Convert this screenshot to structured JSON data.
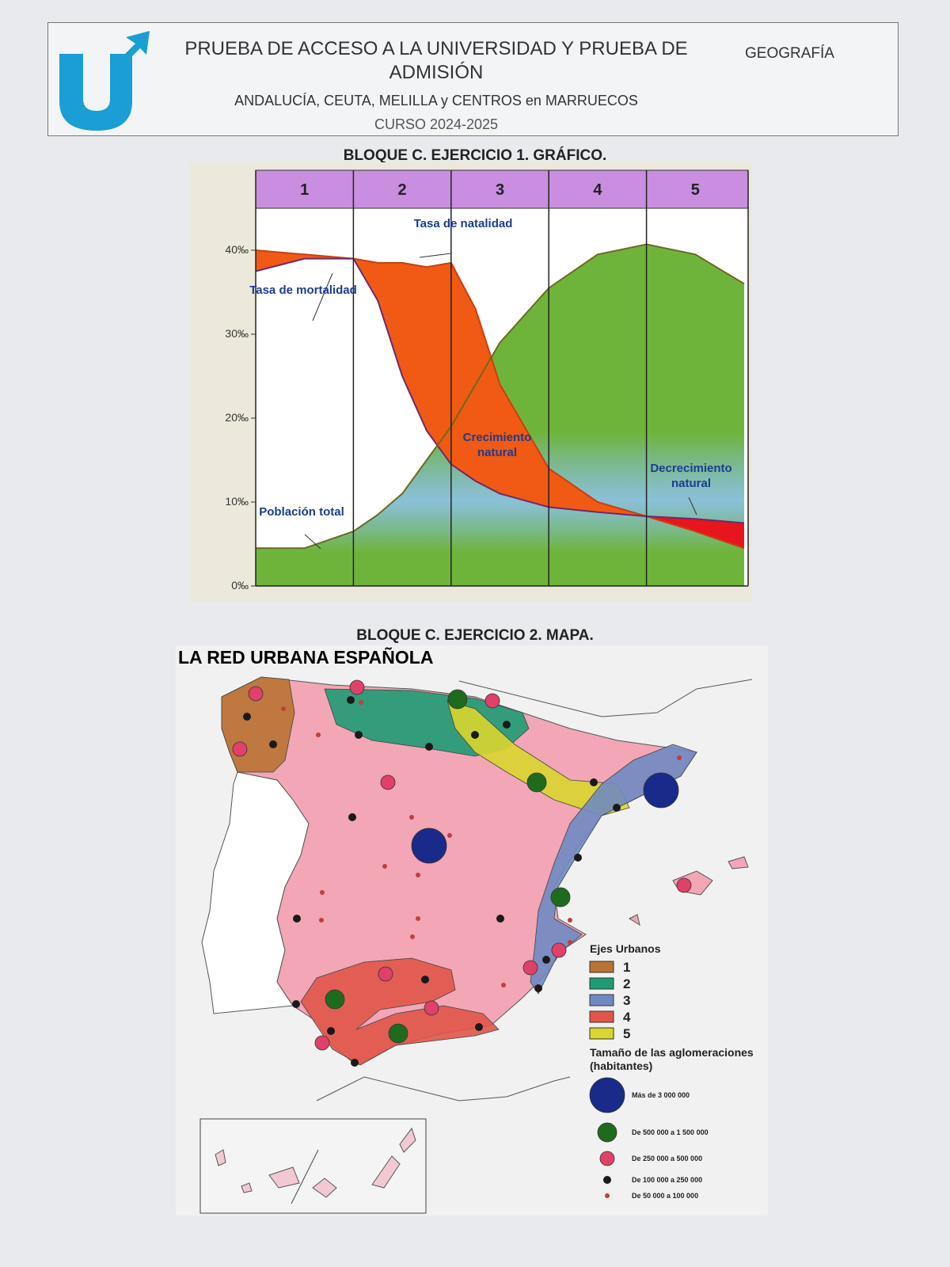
{
  "header": {
    "title": "PRUEBA DE ACCESO A LA UNIVERSIDAD Y PRUEBA DE ADMISIÓN",
    "region": "ANDALUCÍA, CEUTA, MELILLA y CENTROS en MARRUECOS",
    "course": "CURSO 2024-2025",
    "subject": "GEOGRAFÍA"
  },
  "exercise1": {
    "heading": "BLOQUE C. EJERCICIO 1. GRÁFICO.",
    "chart_data": {
      "type": "line",
      "categories": [
        "1",
        "2",
        "3",
        "4",
        "5"
      ],
      "x": [
        0,
        0.5,
        1,
        1.25,
        1.5,
        1.75,
        2,
        2.25,
        2.5,
        3,
        3.5,
        4,
        4.5,
        5
      ],
      "xlim": [
        0,
        5
      ],
      "ylim": [
        0,
        45
      ],
      "yticks": [
        {
          "value": 0,
          "label": "0‰"
        },
        {
          "value": 10,
          "label": "10‰"
        },
        {
          "value": 20,
          "label": "20‰"
        },
        {
          "value": 30,
          "label": "30‰"
        },
        {
          "value": 40,
          "label": "40‰"
        }
      ],
      "series": [
        {
          "name": "Tasa de natalidad",
          "color": "#c9400f",
          "fill": "#f05a14",
          "values": [
            40,
            39.5,
            39,
            38.5,
            38.5,
            38,
            38.5,
            33,
            24,
            14,
            10,
            8.3,
            6.5,
            4.5
          ]
        },
        {
          "name": "Tasa de mortalidad",
          "color": "#6e2a6a",
          "values": [
            37.5,
            39,
            39,
            34,
            25,
            18.5,
            14.5,
            12.5,
            11,
            9.4,
            8.8,
            8.3,
            8,
            7.5
          ]
        },
        {
          "name": "Población total",
          "color": "#6b6b1f",
          "fill": "#6fb43a",
          "values": [
            4.5,
            4.5,
            6.5,
            8.5,
            11,
            15,
            19,
            24,
            29,
            35.5,
            39.5,
            40.7,
            39.5,
            36
          ]
        }
      ],
      "annotations": [
        {
          "text": "Crecimiento natural",
          "color": "#f05a14"
        },
        {
          "text": "Decrecimiento natural",
          "color": "#e8141e"
        }
      ],
      "phase_color": "#c98ee0"
    }
  },
  "exercise2": {
    "heading": "BLOQUE C. EJERCICIO 2. MAPA.",
    "map": {
      "title": "LA RED URBANA ESPAÑOLA",
      "legend": {
        "axes_title": "Ejes Urbanos",
        "axes": [
          {
            "label": "1",
            "color": "#b87333"
          },
          {
            "label": "2",
            "color": "#1e9b74"
          },
          {
            "label": "3",
            "color": "#7089c2"
          },
          {
            "label": "4",
            "color": "#e0564a"
          },
          {
            "label": "5",
            "color": "#d9d62e"
          }
        ],
        "size_title": "Tamaño de las aglomeraciones (habitantes)",
        "sizes": [
          {
            "label": "Más de 3 000 000",
            "color": "#1a2a8a"
          },
          {
            "label": "De 500 000 a 1 500 000",
            "color": "#1f6b1e"
          },
          {
            "label": "De 250 000 a 500 000",
            "color": "#e0406a"
          },
          {
            "label": "De 100 000 a 250 000",
            "color": "#1a1a1a"
          },
          {
            "label": "De 50 000 a 100 000",
            "color": "#c0403a"
          }
        ]
      }
    }
  }
}
